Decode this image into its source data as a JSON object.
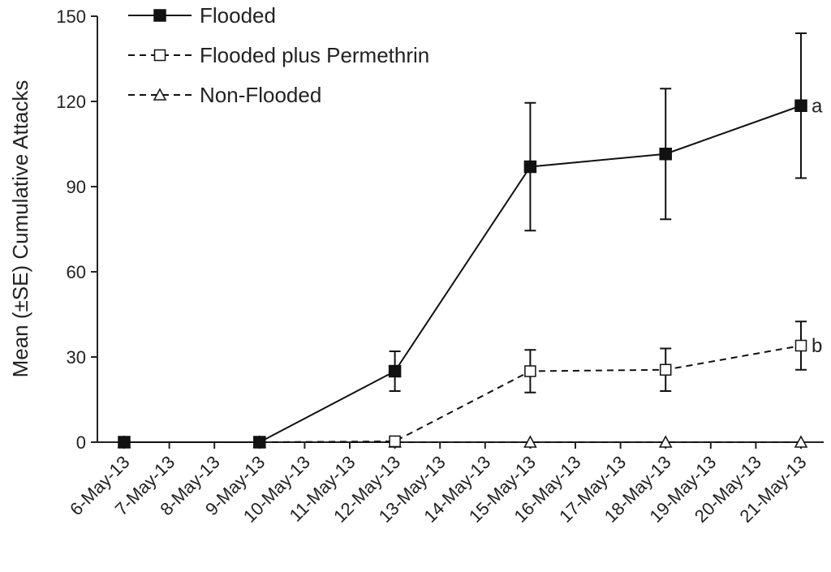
{
  "chart_data": {
    "type": "line",
    "title": "",
    "xlabel": "",
    "ylabel": "Mean (±SE) Cumulative Attacks",
    "ylim": [
      0,
      150
    ],
    "yticks": [
      0,
      30,
      60,
      90,
      120,
      150
    ],
    "grid": false,
    "legend_position": "top-left",
    "categories": [
      "6-May-13",
      "7-May-13",
      "8-May-13",
      "9-May-13",
      "10-May-13",
      "11-May-13",
      "12-May-13",
      "13-May-13",
      "14-May-13",
      "15-May-13",
      "16-May-13",
      "17-May-13",
      "18-May-13",
      "19-May-13",
      "20-May-13",
      "21-May-13"
    ],
    "series": [
      {
        "name": "Flooded",
        "line_style": "solid",
        "marker": "square-filled",
        "points": [
          {
            "x": "6-May-13",
            "y": 0
          },
          {
            "x": "9-May-13",
            "y": 0
          },
          {
            "x": "12-May-13",
            "y": 25,
            "err": 7
          },
          {
            "x": "15-May-13",
            "y": 97,
            "err": 22.5
          },
          {
            "x": "18-May-13",
            "y": 101.5,
            "err": 23
          },
          {
            "x": "21-May-13",
            "y": 118.5,
            "err": 25.5,
            "label": "a"
          }
        ]
      },
      {
        "name": "Flooded plus Permethrin",
        "line_style": "dashed",
        "marker": "square-open",
        "points": [
          {
            "x": "6-May-13",
            "y": 0
          },
          {
            "x": "9-May-13",
            "y": 0
          },
          {
            "x": "12-May-13",
            "y": 0.3
          },
          {
            "x": "15-May-13",
            "y": 25,
            "err": 7.5
          },
          {
            "x": "18-May-13",
            "y": 25.5,
            "err": 7.5
          },
          {
            "x": "21-May-13",
            "y": 34,
            "err": 8.5,
            "label": "b"
          }
        ]
      },
      {
        "name": "Non-Flooded",
        "line_style": "dashed",
        "marker": "triangle-open",
        "points": [
          {
            "x": "6-May-13",
            "y": 0
          },
          {
            "x": "9-May-13",
            "y": 0
          },
          {
            "x": "12-May-13",
            "y": 0
          },
          {
            "x": "15-May-13",
            "y": 0
          },
          {
            "x": "18-May-13",
            "y": 0
          },
          {
            "x": "21-May-13",
            "y": 0
          }
        ]
      }
    ]
  }
}
